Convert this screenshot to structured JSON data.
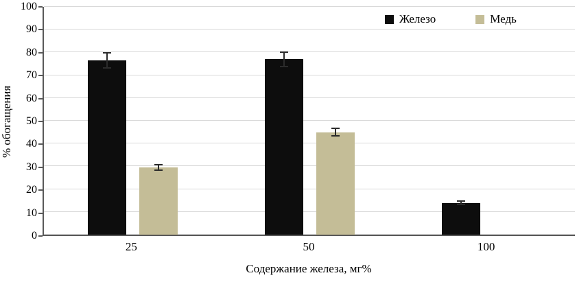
{
  "chart_data": {
    "type": "bar",
    "title": "",
    "xlabel": "Содержание железа, мг%",
    "ylabel": "% обогащения",
    "ylim": [
      0,
      100
    ],
    "yticks": [
      0,
      10,
      20,
      30,
      40,
      50,
      60,
      70,
      80,
      90,
      100
    ],
    "categories": [
      "25",
      "50",
      "100"
    ],
    "series": [
      {
        "name": "Железо",
        "color": "#0d0d0d",
        "values": [
          76.5,
          77,
          14
        ],
        "errors": [
          3.5,
          3.5,
          1
        ]
      },
      {
        "name": "Медь",
        "color": "#c4bd97",
        "values": [
          29.5,
          45,
          null
        ],
        "errors": [
          1.5,
          2,
          null
        ]
      }
    ],
    "grid": true,
    "legend_position": "top-right-inside",
    "error_bars": true
  },
  "colors": {
    "series_iron": "#0d0d0d",
    "series_copper": "#c4bd97",
    "gridline": "#d9d9d9",
    "axis": "#595959",
    "background": "#ffffff"
  }
}
